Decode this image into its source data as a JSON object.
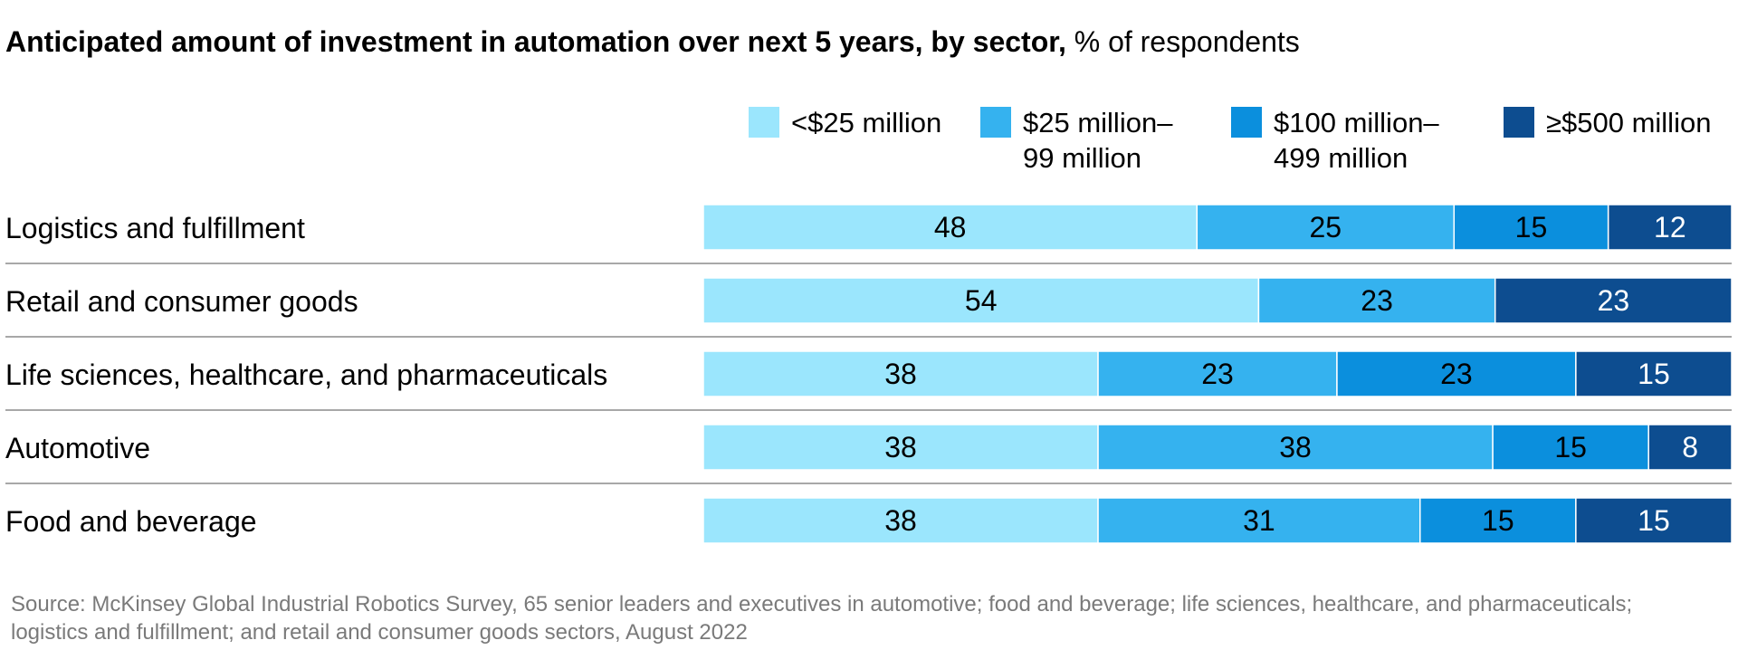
{
  "title": {
    "bold": "Anticipated amount of investment in automation over next 5 years, by sector,",
    "unit": "% of respondents"
  },
  "legend": [
    {
      "label_line1": "<$25 million",
      "label_line2": "",
      "color": "#9be6fd"
    },
    {
      "label_line1": "$25 million–",
      "label_line2": "99 million",
      "color": "#35b2ef"
    },
    {
      "label_line1": "$100 million–",
      "label_line2": "499 million",
      "color": "#0b8fdd"
    },
    {
      "label_line1": "≥$500 million",
      "label_line2": "",
      "color": "#0d4d90"
    }
  ],
  "chart_data": {
    "type": "bar",
    "orientation": "horizontal",
    "stacked": true,
    "categories": [
      "Logistics and fulfillment",
      "Retail and consumer goods",
      "Life sciences, healthcare, and pharmaceuticals",
      "Automotive",
      "Food and beverage"
    ],
    "series": [
      {
        "name": "<$25 million",
        "color": "#9be6fd",
        "values": [
          48,
          54,
          38,
          38,
          38
        ]
      },
      {
        "name": "$25 million–99 million",
        "color": "#35b2ef",
        "values": [
          25,
          23,
          23,
          38,
          31
        ]
      },
      {
        "name": "$100 million–499 million",
        "color": "#0b8fdd",
        "values": [
          15,
          0,
          23,
          15,
          15
        ]
      },
      {
        "name": "≥$500 million",
        "color": "#0d4d90",
        "values": [
          12,
          23,
          15,
          8,
          15
        ]
      }
    ],
    "xlim": [
      0,
      100
    ],
    "grid": false,
    "legend_position": "top-right"
  },
  "source": "Source: McKinsey Global Industrial Robotics Survey, 65 senior leaders and executives in automotive; food and beverage; life sciences, healthcare, and pharmaceuticals; logistics and fulfillment; and retail and consumer goods sectors, August 2022"
}
